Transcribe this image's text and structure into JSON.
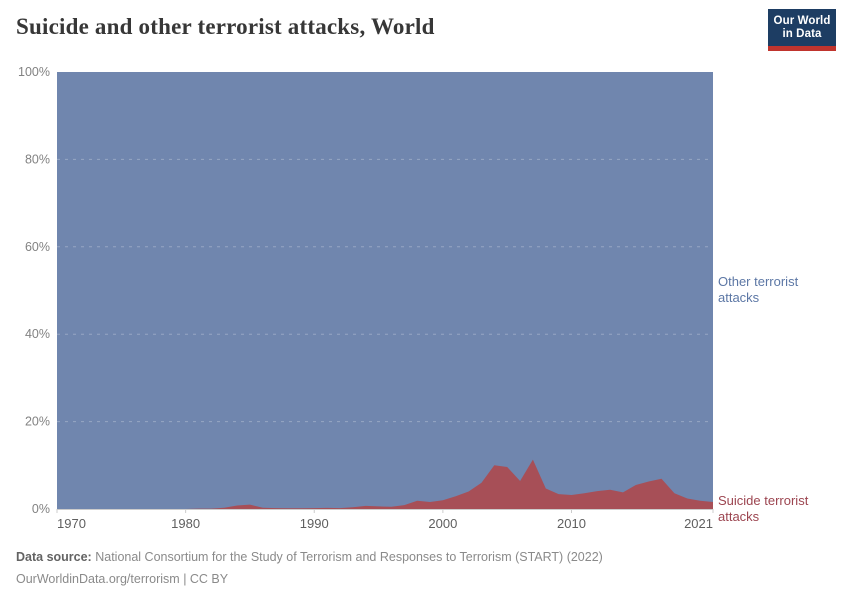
{
  "header": {
    "title": "Suicide and other terrorist attacks, World",
    "logo": {
      "line1": "Our World",
      "line2": "in Data"
    }
  },
  "legend": {
    "other_label": "Other terrorist attacks",
    "suicide_label": "Suicide terrorist attacks"
  },
  "footer": {
    "source_label": "Data source:",
    "source_text": "National Consortium for the Study of Terrorism and Responses to Terrorism (START) (2022)",
    "link_text": "OurWorldinData.org/terrorism",
    "license_suffix": "| CC BY"
  },
  "colors": {
    "other_area": "#7086ae",
    "suicide_area": "#a74f57",
    "other_label": "#5c77a5",
    "suicide_label": "#9c4550",
    "logo_bg": "#1d3d63",
    "logo_bar": "#c0342d",
    "axis_line": "#cccccc",
    "gridline": "rgba(255,255,255,0.28)"
  },
  "chart_data": {
    "type": "area",
    "stacked_percent": true,
    "title": "Suicide and other terrorist attacks, World",
    "xlabel": "",
    "ylabel": "",
    "ylim": [
      0,
      100
    ],
    "x_range": [
      1970,
      2021
    ],
    "grid": true,
    "legend_position": "right",
    "x": [
      1970,
      1971,
      1972,
      1973,
      1974,
      1975,
      1976,
      1977,
      1978,
      1979,
      1980,
      1981,
      1982,
      1983,
      1984,
      1985,
      1986,
      1987,
      1988,
      1989,
      1990,
      1991,
      1992,
      1993,
      1994,
      1995,
      1996,
      1997,
      1998,
      1999,
      2000,
      2001,
      2002,
      2003,
      2004,
      2005,
      2006,
      2007,
      2008,
      2009,
      2010,
      2011,
      2012,
      2013,
      2014,
      2015,
      2016,
      2017,
      2018,
      2019,
      2020,
      2021
    ],
    "series": [
      {
        "name": "Suicide terrorist attacks",
        "color": "#a74f57",
        "values": [
          0,
          0,
          0,
          0,
          0,
          0,
          0,
          0,
          0,
          0,
          0,
          0.1,
          0.1,
          0.3,
          0.8,
          1.0,
          0.3,
          0.2,
          0.15,
          0.15,
          0.2,
          0.25,
          0.2,
          0.4,
          0.7,
          0.6,
          0.5,
          0.9,
          1.9,
          1.6,
          2.0,
          2.9,
          4.0,
          6.0,
          10.0,
          9.6,
          6.4,
          11.3,
          4.7,
          3.4,
          3.2,
          3.6,
          4.1,
          4.4,
          3.8,
          5.5,
          6.3,
          6.9,
          3.6,
          2.4,
          1.9,
          1.6
        ]
      },
      {
        "name": "Other terrorist attacks",
        "color": "#7086ae",
        "values": [
          100,
          100,
          100,
          100,
          100,
          100,
          100,
          100,
          100,
          100,
          100,
          99.9,
          99.9,
          99.7,
          99.2,
          99.0,
          99.7,
          99.8,
          99.85,
          99.85,
          99.8,
          99.75,
          99.8,
          99.6,
          99.3,
          99.4,
          99.5,
          99.1,
          98.1,
          98.4,
          98.0,
          97.1,
          96.0,
          94.0,
          90.0,
          90.4,
          93.6,
          88.7,
          95.3,
          96.6,
          96.8,
          96.4,
          95.9,
          95.6,
          96.2,
          94.5,
          93.7,
          93.1,
          96.4,
          97.6,
          98.1,
          98.4
        ]
      }
    ],
    "xticks": [
      1970,
      1980,
      1990,
      2000,
      2010,
      2021
    ],
    "yticks": [
      {
        "value": 0,
        "label": "0%"
      },
      {
        "value": 20,
        "label": "20%"
      },
      {
        "value": 40,
        "label": "40%"
      },
      {
        "value": 60,
        "label": "60%"
      },
      {
        "value": 80,
        "label": "80%"
      },
      {
        "value": 100,
        "label": "100%"
      }
    ]
  }
}
